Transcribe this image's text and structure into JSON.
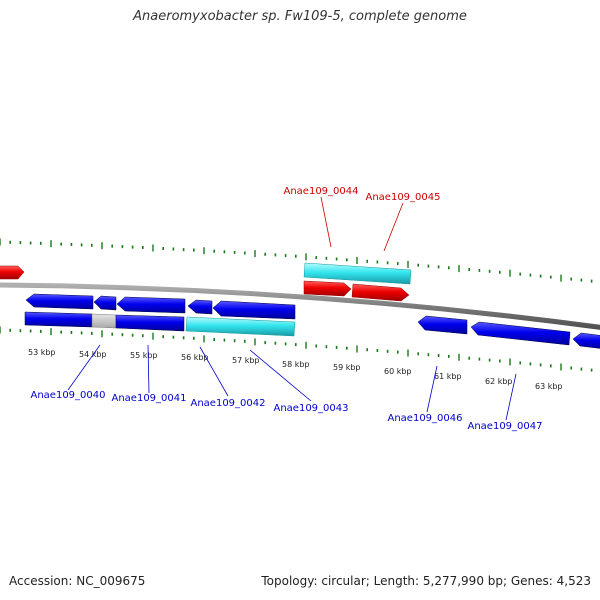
{
  "title": "Anaeromyxobacter sp. Fw109-5, complete genome",
  "accession": "Accession: NC_009675",
  "summary": "Topology: circular; Length: 5,277,990 bp; Genes: 4,523",
  "colors": {
    "backbone": "#8a8a8a",
    "tick": "#1a7a1a",
    "forward": "#ee0000",
    "reverse": "#0000ee",
    "rna": "#33e6ee",
    "pseudo": "#c8c8c8",
    "label_forward": "#cc0000",
    "label_reverse": "#0000cc"
  },
  "scale_labels": [
    {
      "kbp": 53,
      "text": "53 kbp"
    },
    {
      "kbp": 54,
      "text": "54 kbp"
    },
    {
      "kbp": 55,
      "text": "55 kbp"
    },
    {
      "kbp": 56,
      "text": "56 kbp"
    },
    {
      "kbp": 57,
      "text": "57 kbp"
    },
    {
      "kbp": 58,
      "text": "58 kbp"
    },
    {
      "kbp": 59,
      "text": "59 kbp"
    },
    {
      "kbp": 60,
      "text": "60 kbp"
    },
    {
      "kbp": 61,
      "text": "61 kbp"
    },
    {
      "kbp": 62,
      "text": "62 kbp"
    },
    {
      "kbp": 63,
      "text": "63 kbp"
    }
  ],
  "gene_labels": [
    {
      "name": "Anae109_0040",
      "strand": "reverse"
    },
    {
      "name": "Anae109_0041",
      "strand": "reverse"
    },
    {
      "name": "Anae109_0042",
      "strand": "reverse"
    },
    {
      "name": "Anae109_0043",
      "strand": "reverse"
    },
    {
      "name": "Anae109_0044",
      "strand": "forward"
    },
    {
      "name": "Anae109_0045",
      "strand": "forward"
    },
    {
      "name": "Anae109_0046",
      "strand": "reverse"
    },
    {
      "name": "Anae109_0047",
      "strand": "reverse"
    }
  ]
}
